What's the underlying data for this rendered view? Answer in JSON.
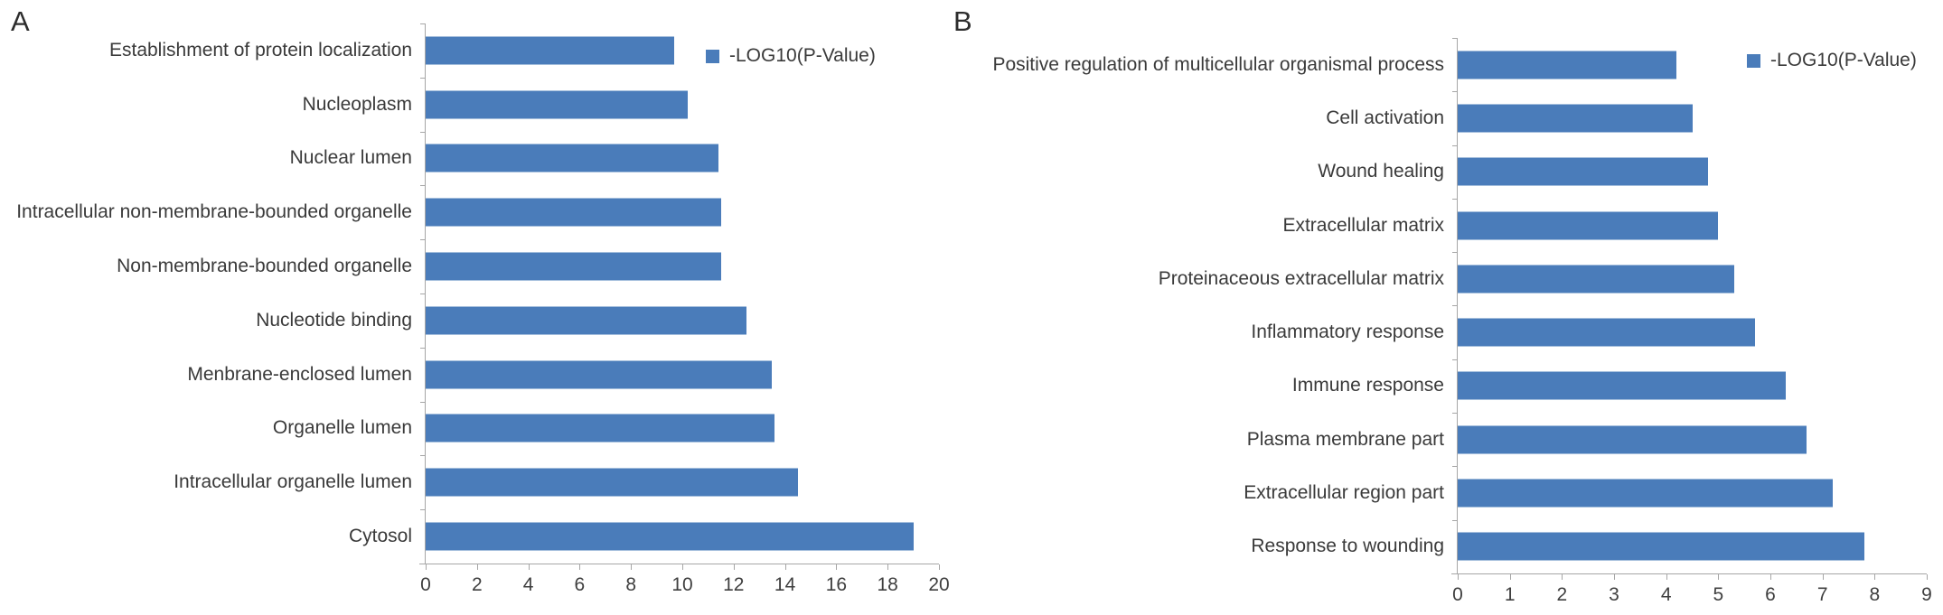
{
  "page": {
    "background": "#ffffff"
  },
  "colors": {
    "bar": "#4a7cba",
    "axis": "#a6a6a6",
    "label_text": "#3a3a3a",
    "panel_letter": "#2d2d2d"
  },
  "chart_data": [
    {
      "type": "bar",
      "orientation": "horizontal",
      "panel": "A",
      "legend": "-LOG10(P-Value)",
      "legend_position": "top-right-inside",
      "title": "",
      "xlabel": "",
      "ylabel": "",
      "grid": false,
      "xlim": [
        0,
        20
      ],
      "xticks": [
        0,
        2,
        4,
        6,
        8,
        10,
        12,
        14,
        16,
        18,
        20
      ],
      "categories": [
        "Establishment of protein localization",
        "Nucleoplasm",
        "Nuclear lumen",
        "Intracellular non-membrane-bounded organelle",
        "Non-membrane-bounded organelle",
        "Nucleotide binding",
        "Menbrane-enclosed lumen",
        "Organelle lumen",
        "Intracellular organelle lumen",
        "Cytosol"
      ],
      "values": [
        9.7,
        10.2,
        11.4,
        11.5,
        11.5,
        12.5,
        13.5,
        13.6,
        14.5,
        19.0
      ]
    },
    {
      "type": "bar",
      "orientation": "horizontal",
      "panel": "B",
      "legend": "-LOG10(P-Value)",
      "legend_position": "top-right-inside",
      "title": "",
      "xlabel": "",
      "ylabel": "",
      "grid": false,
      "xlim": [
        0,
        9
      ],
      "xticks": [
        0,
        1,
        2,
        3,
        4,
        5,
        6,
        7,
        8,
        9
      ],
      "categories": [
        "Positive regulation of multicellular organismal process",
        "Cell activation",
        "Wound healing",
        "Extracellular matrix",
        "Proteinaceous extracellular matrix",
        "Inflammatory response",
        "Immune response",
        "Plasma membrane part",
        "Extracellular region part",
        "Response to wounding"
      ],
      "values": [
        4.2,
        4.5,
        4.8,
        5.0,
        5.3,
        5.7,
        6.3,
        6.7,
        7.2,
        7.8
      ]
    }
  ]
}
